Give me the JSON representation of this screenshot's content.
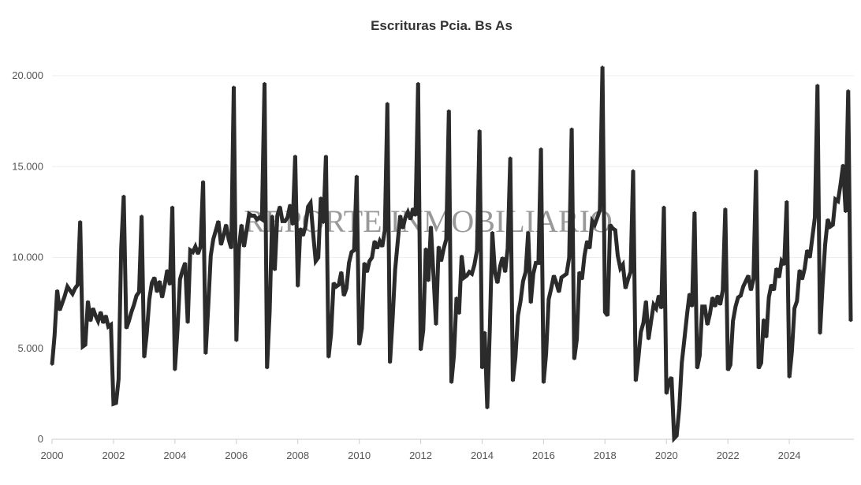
{
  "chart_data": {
    "type": "line",
    "title": "Escrituras Pcia. Bs As",
    "watermark": "REPORTE INMOBILIARIO",
    "xlabel": "",
    "ylabel": "",
    "x_start": "2000-01",
    "frequency": "monthly",
    "xlim": [
      2000,
      2026
    ],
    "ylim": [
      0,
      20500
    ],
    "x_ticks": [
      "2000",
      "2002",
      "2004",
      "2006",
      "2008",
      "2010",
      "2012",
      "2014",
      "2016",
      "2018",
      "2020",
      "2022",
      "2024"
    ],
    "y_ticks": [
      {
        "value": 0,
        "label": "0"
      },
      {
        "value": 5000,
        "label": "5.000"
      },
      {
        "value": 10000,
        "label": "10.000"
      },
      {
        "value": 15000,
        "label": "15.000"
      },
      {
        "value": 20000,
        "label": "20.000"
      }
    ],
    "grid": true,
    "line_color": "#2b2b2b",
    "series": [
      {
        "name": "Escrituras",
        "values": [
          4100,
          5700,
          8200,
          7100,
          7500,
          7900,
          8400,
          8200,
          8000,
          8300,
          8500,
          12000,
          5100,
          5200,
          7600,
          6500,
          7200,
          6800,
          6500,
          7000,
          6400,
          6800,
          6200,
          6300,
          1950,
          2000,
          3300,
          10500,
          13400,
          6100,
          6500,
          7000,
          7400,
          7900,
          8100,
          12300,
          4500,
          5800,
          7700,
          8600,
          8900,
          8100,
          8700,
          7800,
          8500,
          9300,
          8500,
          12800,
          3800,
          6000,
          8800,
          9300,
          9700,
          6400,
          10400,
          10300,
          10600,
          10200,
          10600,
          14200,
          4700,
          7300,
          10100,
          11000,
          11500,
          12000,
          10700,
          11200,
          11800,
          11000,
          10500,
          19400,
          5400,
          10500,
          11800,
          10600,
          11500,
          12400,
          12300,
          12300,
          12100,
          12200,
          12100,
          19600,
          3900,
          7000,
          12300,
          9300,
          12300,
          12800,
          12000,
          12000,
          12200,
          12900,
          11800,
          15600,
          8400,
          11600,
          11200,
          11700,
          12800,
          13000,
          11300,
          9800,
          10000,
          13300,
          11900,
          15600,
          4500,
          5800,
          8600,
          8400,
          8500,
          9200,
          7900,
          8300,
          9700,
          10300,
          10400,
          14500,
          5200,
          6100,
          9700,
          9200,
          9800,
          10000,
          10900,
          10500,
          10900,
          10600,
          11500,
          18500,
          4200,
          6500,
          9300,
          10800,
          12300,
          11600,
          12200,
          12500,
          12100,
          12700,
          12300,
          19600,
          4900,
          6000,
          10500,
          8700,
          11700,
          9000,
          6300,
          10600,
          9800,
          10500,
          11000,
          18100,
          3100,
          4600,
          7800,
          6900,
          10100,
          8900,
          9000,
          9200,
          9100,
          9600,
          10400,
          17000,
          3900,
          5900,
          1700,
          6000,
          11400,
          9200,
          8600,
          9500,
          10000,
          9200,
          10500,
          15500,
          3200,
          4500,
          6800,
          7600,
          8700,
          9200,
          11400,
          7500,
          9100,
          9700,
          9700,
          16000,
          3100,
          4700,
          7700,
          8300,
          9000,
          8600,
          8100,
          8900,
          9000,
          9100,
          10000,
          17100,
          4400,
          5500,
          9200,
          8800,
          10100,
          10900,
          10500,
          12000,
          11800,
          12200,
          12600,
          20500,
          7000,
          6800,
          11800,
          11600,
          11500,
          10100,
          9400,
          9600,
          8300,
          8800,
          9200,
          14800,
          3200,
          4400,
          5900,
          6400,
          7600,
          5500,
          6500,
          7400,
          7200,
          7900,
          7200,
          12800,
          2500,
          3200,
          3400,
          50,
          200,
          1700,
          4200,
          5500,
          6800,
          8000,
          7300,
          12500,
          3900,
          4600,
          7300,
          7300,
          6300,
          6900,
          7800,
          7300,
          7900,
          7400,
          8200,
          12700,
          3800,
          4100,
          6500,
          7300,
          7800,
          7900,
          8400,
          8700,
          9000,
          8200,
          8800,
          14800,
          3900,
          4200,
          6600,
          5600,
          7800,
          8500,
          8200,
          9400,
          8900,
          9800,
          9600,
          13100,
          3400,
          4800,
          7200,
          7600,
          9300,
          8800,
          9400,
          10400,
          10000,
          11100,
          12200,
          19500,
          5800,
          8500,
          10700,
          12100,
          11700,
          11800,
          13200,
          13100,
          14000,
          15100,
          12500,
          19200,
          6500
        ]
      }
    ]
  }
}
